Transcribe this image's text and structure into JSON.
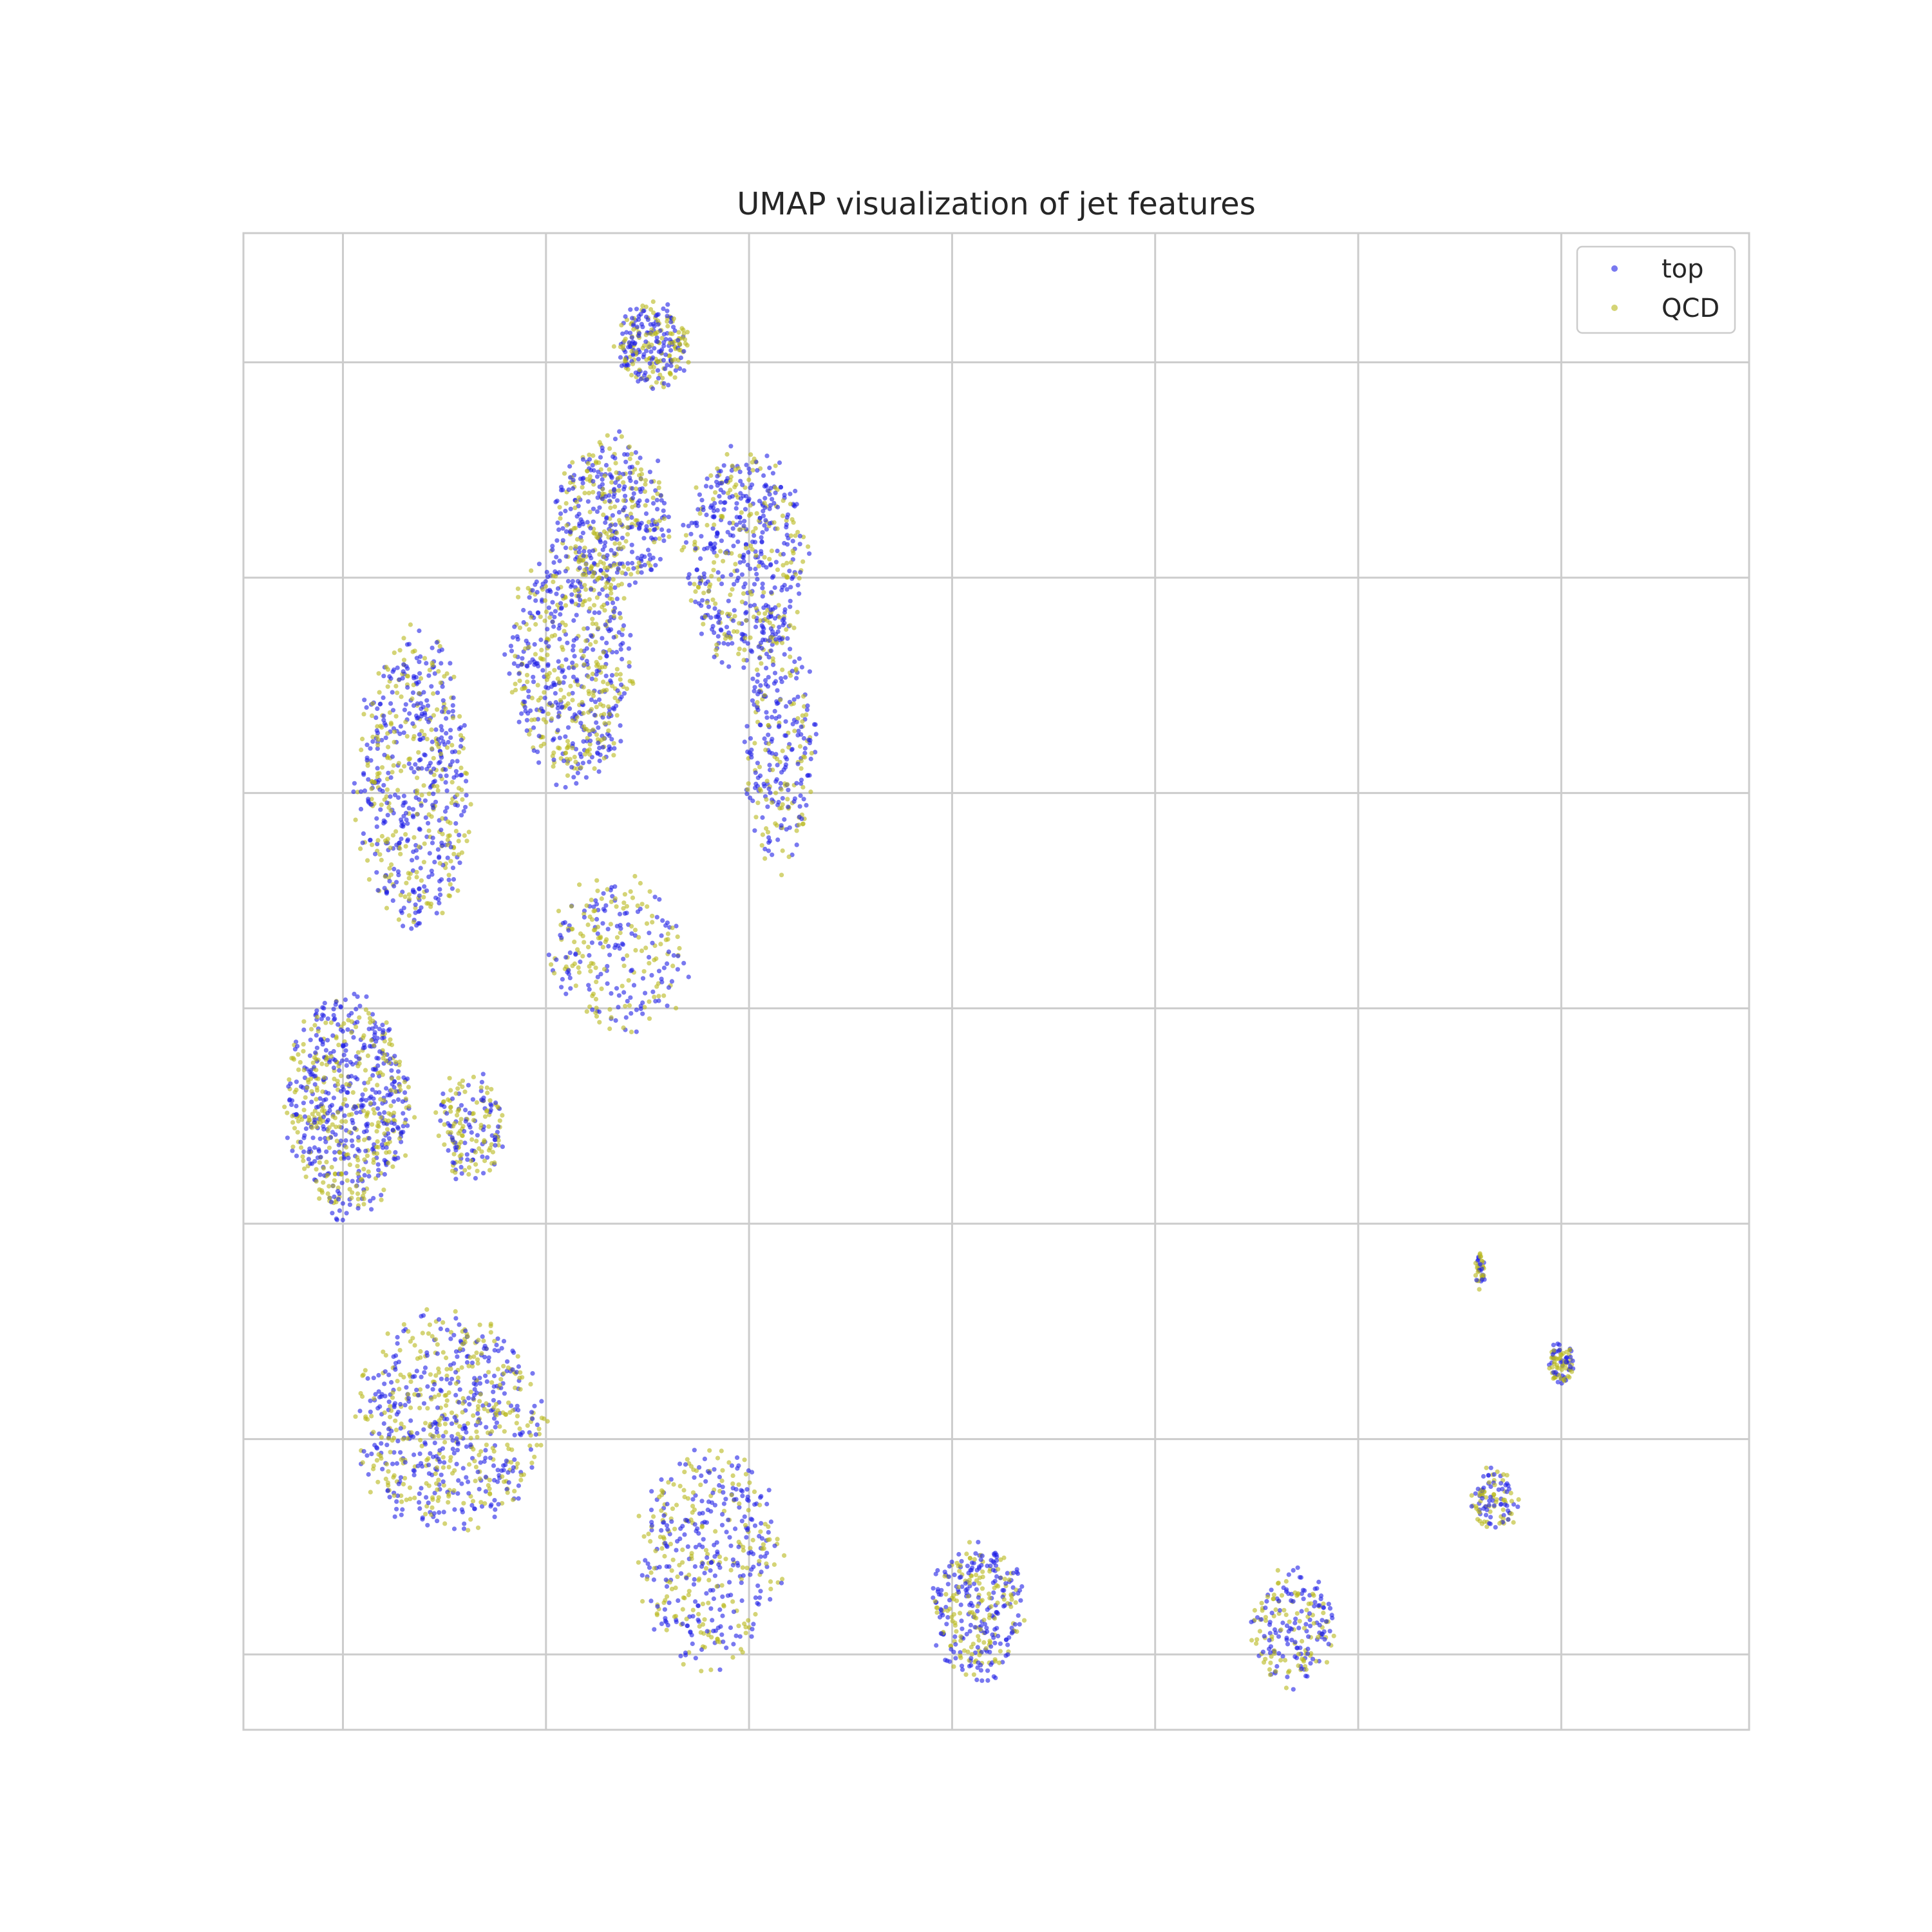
{
  "chart_data": {
    "type": "scatter",
    "title": "UMAP visualization of jet features",
    "xlabel": "",
    "ylabel": "",
    "xlim": [
      -0.98,
      13.85
    ],
    "ylim": [
      -0.35,
      6.6
    ],
    "x_gridlines": [
      0,
      2,
      4,
      6,
      8,
      10,
      12,
      14
    ],
    "y_gridlines": [
      0,
      1,
      2,
      3,
      4,
      5,
      6,
      7
    ],
    "grid": true,
    "tick_labels_visible": false,
    "legend_position": "top-right",
    "series": [
      {
        "name": "top",
        "color": "#1f1fe6",
        "opacity": 0.6
      },
      {
        "name": "QCD",
        "color": "#b8b81a",
        "opacity": 0.6
      }
    ],
    "clusters": [
      {
        "cx": 3.05,
        "cy": 6.08,
        "rx": 0.35,
        "ry": 0.2,
        "n": 260,
        "top_share": 0.55
      },
      {
        "cx": 2.65,
        "cy": 5.3,
        "rx": 0.55,
        "ry": 0.35,
        "n": 420,
        "top_share": 0.6
      },
      {
        "cx": 3.95,
        "cy": 5.1,
        "rx": 0.6,
        "ry": 0.5,
        "n": 520,
        "top_share": 0.65
      },
      {
        "cx": 2.25,
        "cy": 4.6,
        "rx": 0.6,
        "ry": 0.55,
        "n": 620,
        "top_share": 0.55
      },
      {
        "cx": 4.3,
        "cy": 4.25,
        "rx": 0.35,
        "ry": 0.6,
        "n": 300,
        "top_share": 0.7
      },
      {
        "cx": 0.7,
        "cy": 4.05,
        "rx": 0.55,
        "ry": 0.7,
        "n": 620,
        "top_share": 0.6
      },
      {
        "cx": 2.7,
        "cy": 3.25,
        "rx": 0.7,
        "ry": 0.35,
        "n": 260,
        "top_share": 0.5
      },
      {
        "cx": 0.05,
        "cy": 2.55,
        "rx": 0.6,
        "ry": 0.5,
        "n": 700,
        "top_share": 0.55
      },
      {
        "cx": 1.25,
        "cy": 2.45,
        "rx": 0.35,
        "ry": 0.25,
        "n": 180,
        "top_share": 0.45
      },
      {
        "cx": 1.05,
        "cy": 1.08,
        "rx": 0.9,
        "ry": 0.5,
        "n": 700,
        "top_share": 0.55
      },
      {
        "cx": 3.6,
        "cy": 0.45,
        "rx": 0.7,
        "ry": 0.5,
        "n": 440,
        "top_share": 0.55
      },
      {
        "cx": 6.25,
        "cy": 0.2,
        "rx": 0.45,
        "ry": 0.32,
        "n": 330,
        "top_share": 0.6
      },
      {
        "cx": 9.35,
        "cy": 0.12,
        "rx": 0.4,
        "ry": 0.28,
        "n": 210,
        "top_share": 0.55
      },
      {
        "cx": 11.35,
        "cy": 0.72,
        "rx": 0.22,
        "ry": 0.15,
        "n": 110,
        "top_share": 0.5
      },
      {
        "cx": 12.0,
        "cy": 1.35,
        "rx": 0.12,
        "ry": 0.1,
        "n": 90,
        "top_share": 0.5
      },
      {
        "cx": 11.2,
        "cy": 1.78,
        "rx": 0.05,
        "ry": 0.08,
        "n": 40,
        "top_share": 0.6
      }
    ]
  }
}
